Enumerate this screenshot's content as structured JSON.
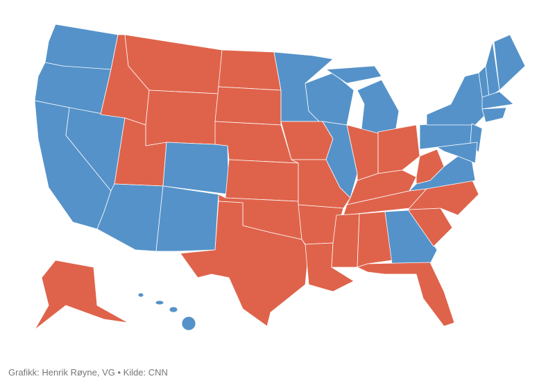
{
  "credit": "Grafikk: Henrik Røyne, VG • Kilde: CNN",
  "colors": [
    "#5592c9",
    "#df634b"
  ]
}
